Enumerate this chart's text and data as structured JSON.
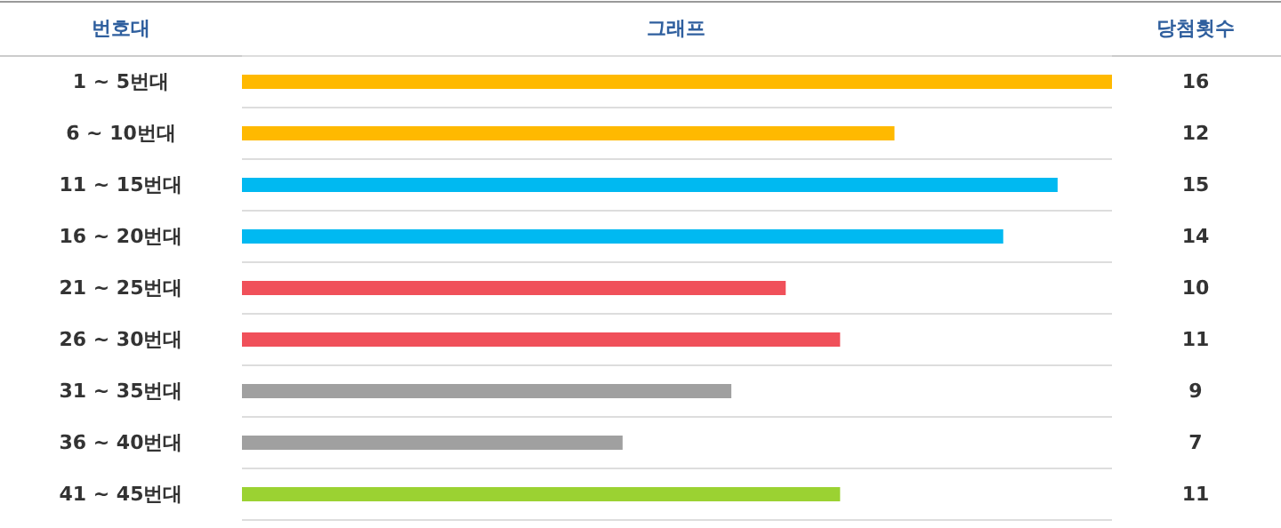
{
  "chart_data": {
    "type": "bar",
    "orientation": "horizontal",
    "title": "그래프",
    "ylabel": "번호대",
    "y2label": "당첨횟수",
    "categories": [
      "1 ~ 5번대",
      "6 ~ 10번대",
      "11 ~ 15번대",
      "16 ~ 20번대",
      "21 ~ 25번대",
      "26 ~ 30번대",
      "31 ~ 35번대",
      "36 ~ 40번대",
      "41 ~ 45번대"
    ],
    "values": [
      16,
      12,
      15,
      14,
      10,
      11,
      9,
      7,
      11
    ],
    "colors": [
      "#ffb900",
      "#ffb900",
      "#00b9f1",
      "#00b9f1",
      "#f0505a",
      "#f0505a",
      "#a0a0a0",
      "#a0a0a0",
      "#9bd232"
    ],
    "data_labels": true,
    "grid": "y"
  }
}
